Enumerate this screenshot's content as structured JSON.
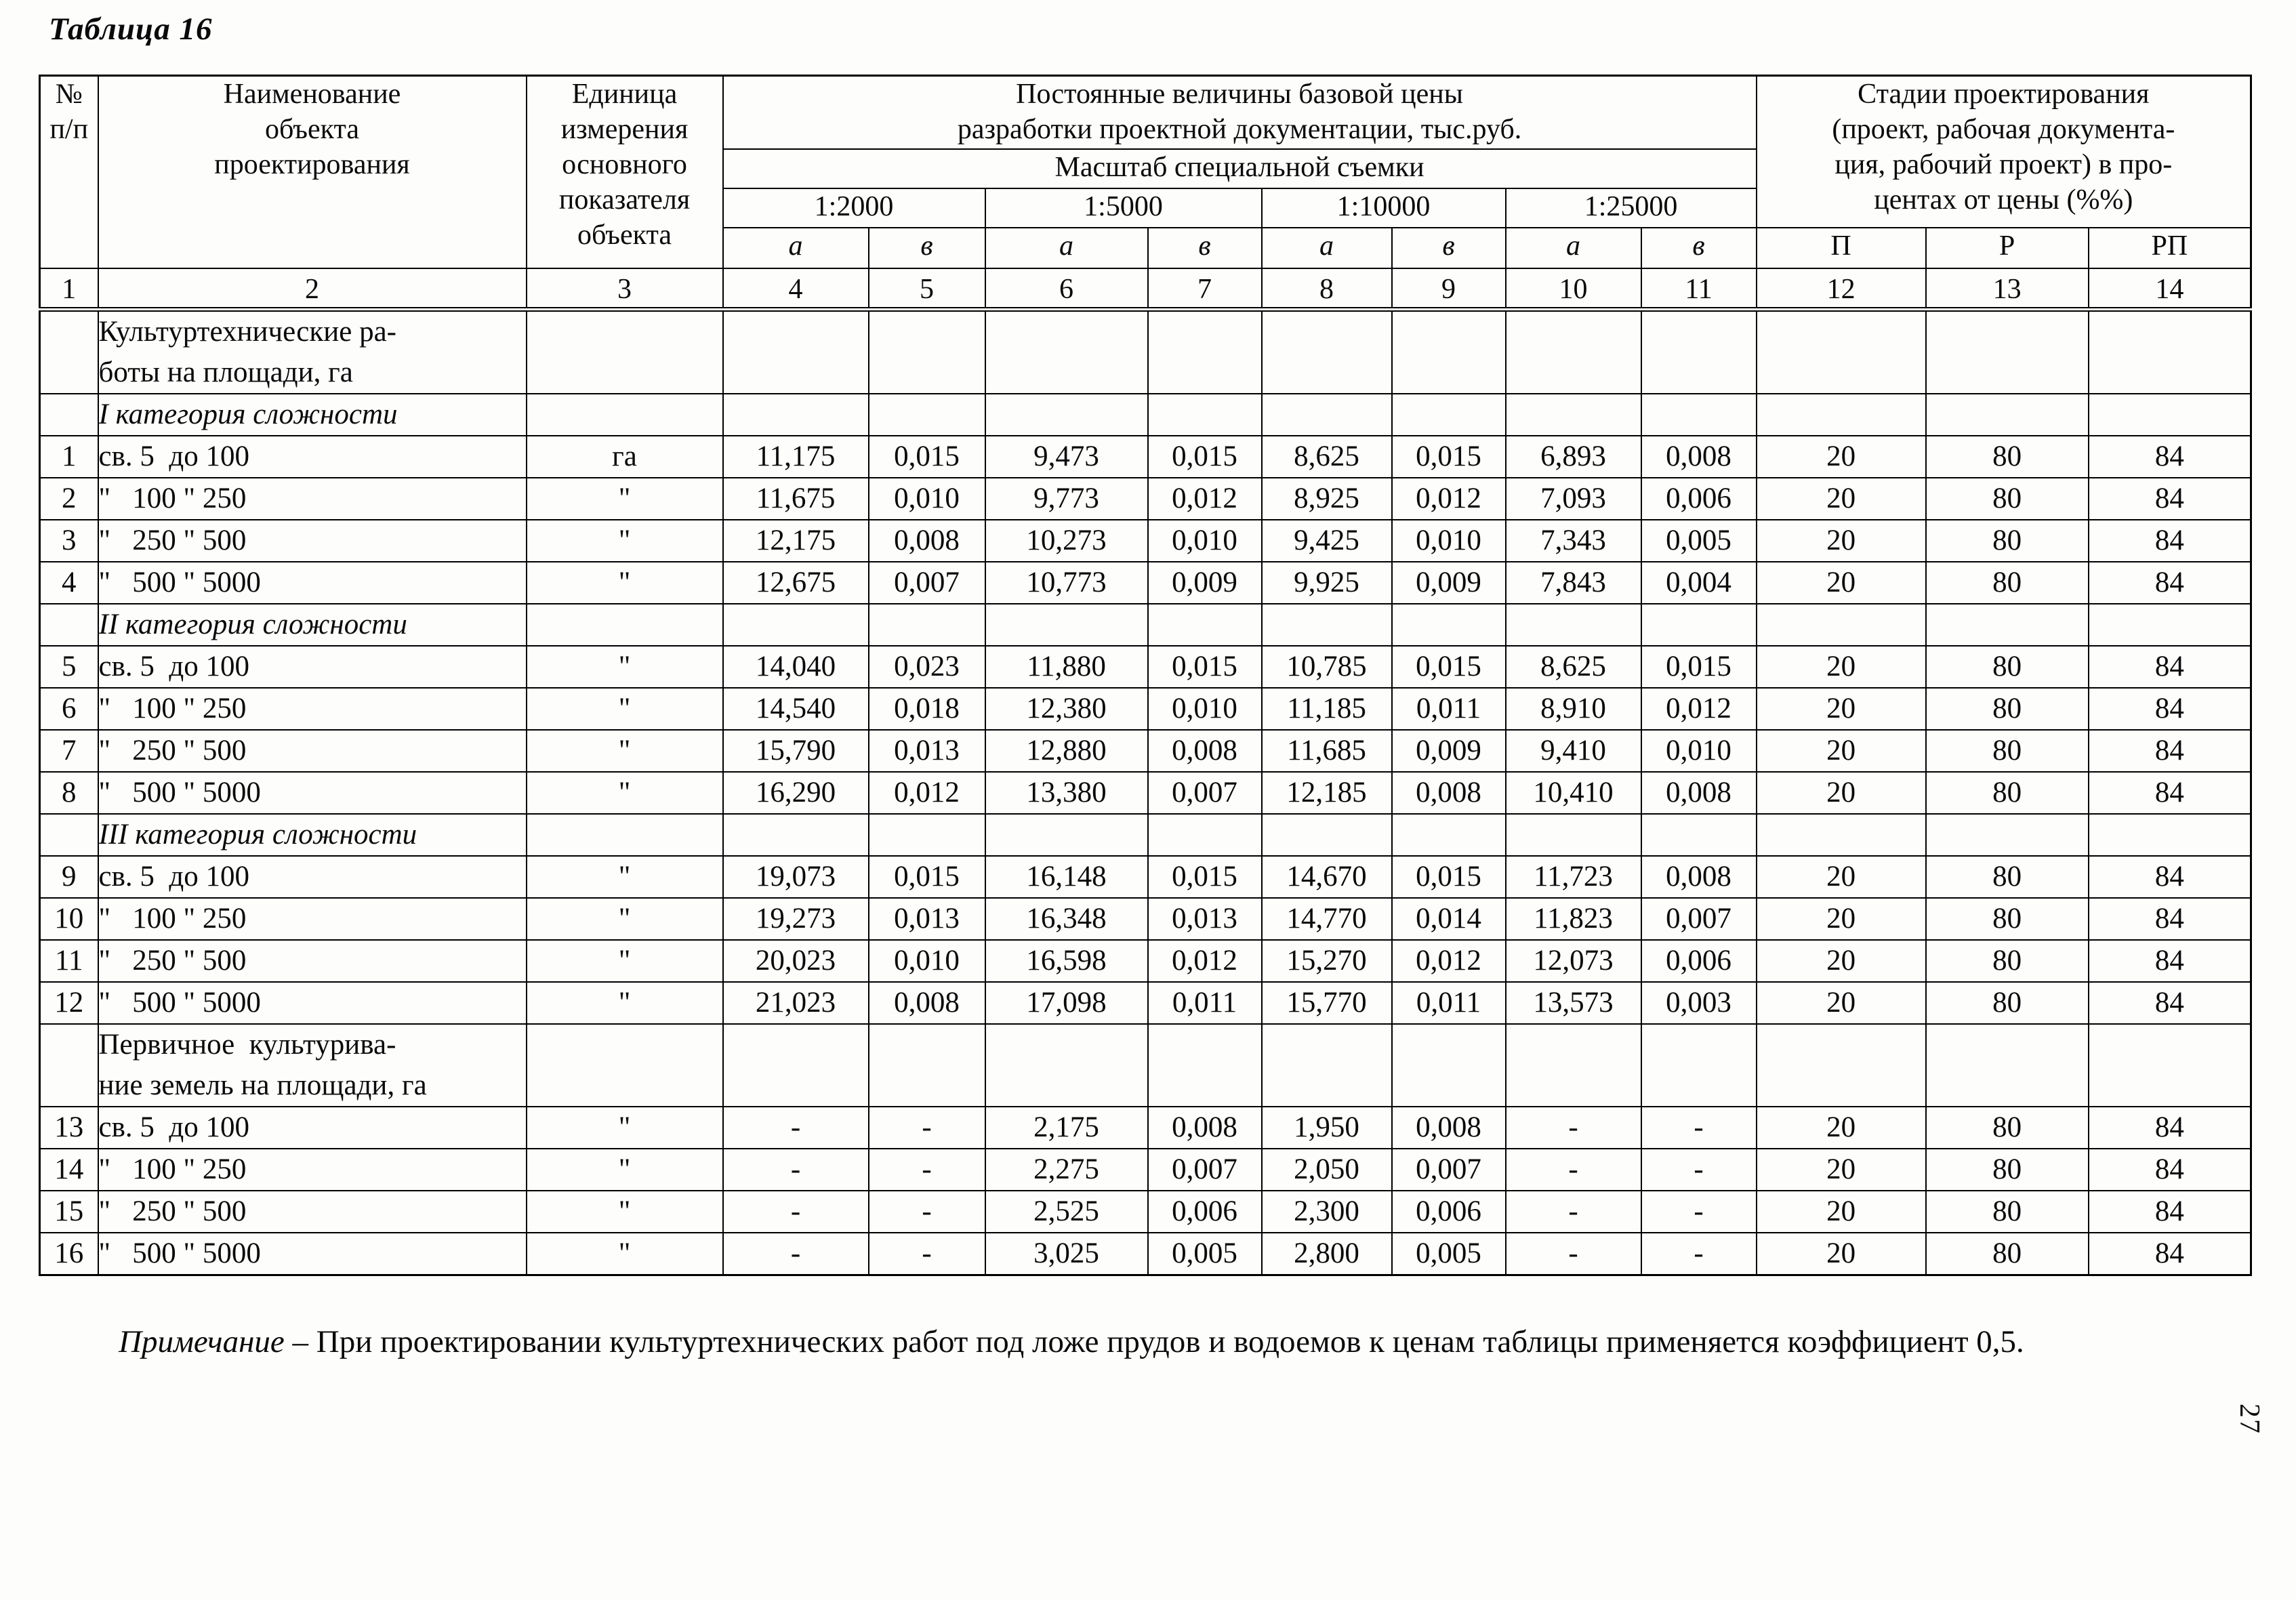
{
  "page": {
    "title": "Таблица 16",
    "page_number": "27"
  },
  "note": {
    "label": "Примечание",
    "text": " – При проектировании культуртехнических работ под ложе прудов и водоемов к ценам таблицы применяется коэффициент 0,5."
  },
  "table": {
    "header": {
      "col_no": "№\nп/п",
      "col_name": "Наименование\nобъекта\nпроектирования",
      "col_unit": "Единица\nизмерения\nосновного\nпоказателя\nобъекта",
      "price_group": "Постоянные величины базовой цены\nразработки проектной документации, тыс.руб.",
      "scale_group": "Масштаб специальной съемки",
      "scales": [
        "1:2000",
        "1:5000",
        "1:10000",
        "1:25000"
      ],
      "ab": [
        "а",
        "в"
      ],
      "stages_group": "Стадии проектирования\n(проект, рабочая документа-\nция, рабочий проект) в про-\nцентах от цены (%%)",
      "stages": [
        "П",
        "Р",
        "РП"
      ],
      "column_numbers": [
        "1",
        "2",
        "3",
        "4",
        "5",
        "6",
        "7",
        "8",
        "9",
        "10",
        "11",
        "12",
        "13",
        "14"
      ]
    },
    "rows": [
      {
        "type": "group",
        "name": "Культуртехнические ра-\nботы на площади, га"
      },
      {
        "type": "category",
        "name": "I категория сложности"
      },
      {
        "type": "data",
        "no": "1",
        "name": "св. 5  до 100",
        "unit": "га",
        "values": [
          "11,175",
          "0,015",
          "9,473",
          "0,015",
          "8,625",
          "0,015",
          "6,893",
          "0,008"
        ],
        "stages": [
          "20",
          "80",
          "84"
        ]
      },
      {
        "type": "data",
        "no": "2",
        "name": "\"   100 \" 250",
        "unit": "\"",
        "values": [
          "11,675",
          "0,010",
          "9,773",
          "0,012",
          "8,925",
          "0,012",
          "7,093",
          "0,006"
        ],
        "stages": [
          "20",
          "80",
          "84"
        ]
      },
      {
        "type": "data",
        "no": "3",
        "name": "\"   250 \" 500",
        "unit": "\"",
        "values": [
          "12,175",
          "0,008",
          "10,273",
          "0,010",
          "9,425",
          "0,010",
          "7,343",
          "0,005"
        ],
        "stages": [
          "20",
          "80",
          "84"
        ]
      },
      {
        "type": "data",
        "no": "4",
        "name": "\"   500 \" 5000",
        "unit": "\"",
        "values": [
          "12,675",
          "0,007",
          "10,773",
          "0,009",
          "9,925",
          "0,009",
          "7,843",
          "0,004"
        ],
        "stages": [
          "20",
          "80",
          "84"
        ]
      },
      {
        "type": "category",
        "name": "II категория сложности"
      },
      {
        "type": "data",
        "no": "5",
        "name": "св. 5  до 100",
        "unit": "\"",
        "values": [
          "14,040",
          "0,023",
          "11,880",
          "0,015",
          "10,785",
          "0,015",
          "8,625",
          "0,015"
        ],
        "stages": [
          "20",
          "80",
          "84"
        ]
      },
      {
        "type": "data",
        "no": "6",
        "name": "\"   100 \" 250",
        "unit": "\"",
        "values": [
          "14,540",
          "0,018",
          "12,380",
          "0,010",
          "11,185",
          "0,011",
          "8,910",
          "0,012"
        ],
        "stages": [
          "20",
          "80",
          "84"
        ]
      },
      {
        "type": "data",
        "no": "7",
        "name": "\"   250 \" 500",
        "unit": "\"",
        "values": [
          "15,790",
          "0,013",
          "12,880",
          "0,008",
          "11,685",
          "0,009",
          "9,410",
          "0,010"
        ],
        "stages": [
          "20",
          "80",
          "84"
        ]
      },
      {
        "type": "data",
        "no": "8",
        "name": "\"   500 \" 5000",
        "unit": "\"",
        "values": [
          "16,290",
          "0,012",
          "13,380",
          "0,007",
          "12,185",
          "0,008",
          "10,410",
          "0,008"
        ],
        "stages": [
          "20",
          "80",
          "84"
        ]
      },
      {
        "type": "category",
        "name": "III категория сложности"
      },
      {
        "type": "data",
        "no": "9",
        "name": "св. 5  до 100",
        "unit": "\"",
        "values": [
          "19,073",
          "0,015",
          "16,148",
          "0,015",
          "14,670",
          "0,015",
          "11,723",
          "0,008"
        ],
        "stages": [
          "20",
          "80",
          "84"
        ]
      },
      {
        "type": "data",
        "no": "10",
        "name": "\"   100 \" 250",
        "unit": "\"",
        "values": [
          "19,273",
          "0,013",
          "16,348",
          "0,013",
          "14,770",
          "0,014",
          "11,823",
          "0,007"
        ],
        "stages": [
          "20",
          "80",
          "84"
        ]
      },
      {
        "type": "data",
        "no": "11",
        "name": "\"   250 \" 500",
        "unit": "\"",
        "values": [
          "20,023",
          "0,010",
          "16,598",
          "0,012",
          "15,270",
          "0,012",
          "12,073",
          "0,006"
        ],
        "stages": [
          "20",
          "80",
          "84"
        ]
      },
      {
        "type": "data",
        "no": "12",
        "name": "\"   500 \" 5000",
        "unit": "\"",
        "values": [
          "21,023",
          "0,008",
          "17,098",
          "0,011",
          "15,770",
          "0,011",
          "13,573",
          "0,003"
        ],
        "stages": [
          "20",
          "80",
          "84"
        ]
      },
      {
        "type": "group",
        "name": "Первичное  культурива-\nние земель на площади, га"
      },
      {
        "type": "data",
        "no": "13",
        "name": "св. 5  до 100",
        "unit": "\"",
        "values": [
          "-",
          "-",
          "2,175",
          "0,008",
          "1,950",
          "0,008",
          "-",
          "-"
        ],
        "stages": [
          "20",
          "80",
          "84"
        ]
      },
      {
        "type": "data",
        "no": "14",
        "name": "\"   100 \" 250",
        "unit": "\"",
        "values": [
          "-",
          "-",
          "2,275",
          "0,007",
          "2,050",
          "0,007",
          "-",
          "-"
        ],
        "stages": [
          "20",
          "80",
          "84"
        ]
      },
      {
        "type": "data",
        "no": "15",
        "name": "\"   250 \" 500",
        "unit": "\"",
        "values": [
          "-",
          "-",
          "2,525",
          "0,006",
          "2,300",
          "0,006",
          "-",
          "-"
        ],
        "stages": [
          "20",
          "80",
          "84"
        ]
      },
      {
        "type": "data",
        "no": "16",
        "name": "\"   500 \" 5000",
        "unit": "\"",
        "values": [
          "-",
          "-",
          "3,025",
          "0,005",
          "2,800",
          "0,005",
          "-",
          "-"
        ],
        "stages": [
          "20",
          "80",
          "84"
        ]
      }
    ]
  }
}
